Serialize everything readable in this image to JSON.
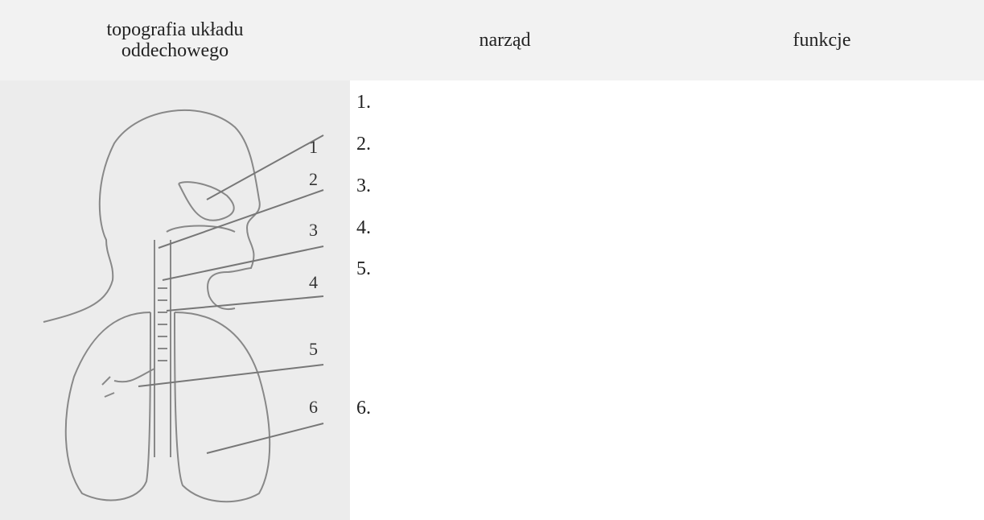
{
  "table": {
    "header": [
      "topografia układu oddechowego",
      "narząd",
      "funkcje"
    ],
    "figure_labels": [
      "1",
      "2",
      "3",
      "4",
      "5",
      "6"
    ],
    "organ_items": [
      "1.",
      "2.",
      "3.",
      "4.",
      "5.",
      "6."
    ]
  }
}
